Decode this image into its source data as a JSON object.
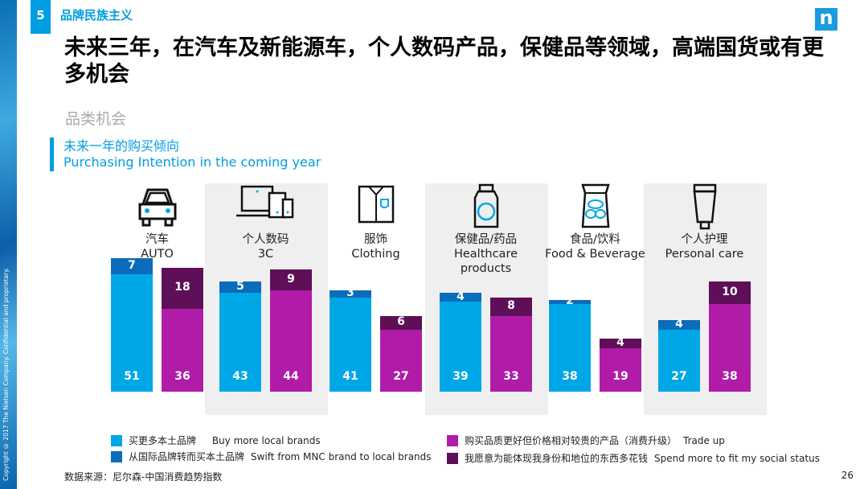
{
  "section": {
    "number": "5",
    "title": "品牌民族主义"
  },
  "logo": "n",
  "title": "未来三年，在汽车及新能源车，个人数码产品，保健品等领域，高端国货或有更多机会",
  "subtitle": "品类机会",
  "copyright": "Copyright © 2017 The Nielsen Company. Confidential and proprietary.",
  "chart_data": {
    "type": "bar",
    "title_cn": "未来一年的购买倾向",
    "title_en": "Purchasing Intention in the coming year",
    "categories": [
      {
        "cn": "汽车",
        "en": "AUTO",
        "icon": "car-icon"
      },
      {
        "cn": "个人数码",
        "en": "3C",
        "icon": "devices-icon"
      },
      {
        "cn": "服饰",
        "en": "Clothing",
        "icon": "shirt-icon"
      },
      {
        "cn": "保健品/药品",
        "en": "Healthcare products",
        "icon": "medicine-bottle-icon"
      },
      {
        "cn": "食品/饮料",
        "en": "Food & Beverage",
        "icon": "food-bag-icon"
      },
      {
        "cn": "个人护理",
        "en": "Personal care",
        "icon": "tube-icon"
      }
    ],
    "stacks": [
      {
        "bar": "local",
        "series": [
          {
            "name": "买更多本土品牌 Buy more local brands",
            "color": "#00a7e7",
            "values": [
              51,
              43,
              41,
              39,
              38,
              27
            ]
          },
          {
            "name": "从国际品牌转而买本土品牌 Swift from MNC brand to local brands",
            "color": "#0a6cba",
            "values": [
              7,
              5,
              3,
              4,
              2,
              4
            ]
          }
        ]
      },
      {
        "bar": "upgrade",
        "series": [
          {
            "name": "购买品质更好但价格相对较贵的产品（消费升级） Trade up",
            "color": "#b01ca8",
            "values": [
              36,
              44,
              27,
              33,
              19,
              38
            ]
          },
          {
            "name": "我愿意为能体现我身份和地位的东西多花钱 Spend more to fit my social status",
            "color": "#5e0f57",
            "values": [
              18,
              9,
              6,
              8,
              4,
              10
            ]
          }
        ]
      }
    ],
    "highlighted_categories": [
      "3C",
      "Healthcare products",
      "Personal care"
    ]
  },
  "legend": [
    {
      "cn": "买更多本土品牌",
      "en": "Buy more local brands",
      "color": "#00a7e7"
    },
    {
      "cn": "从国际品牌转而买本土品牌",
      "en": "Swift from MNC brand to local brands",
      "color": "#0a6cba"
    },
    {
      "cn": "购买品质更好但价格相对较贵的产品（消费升级）",
      "en": "Trade up",
      "color": "#b01ca8"
    },
    {
      "cn": "我愿意为能体现我身份和地位的东西多花钱",
      "en": "Spend more to fit my social status",
      "color": "#5e0f57"
    }
  ],
  "source": "数据来源：尼尔森-中国消费趋势指数",
  "page_number": "26"
}
